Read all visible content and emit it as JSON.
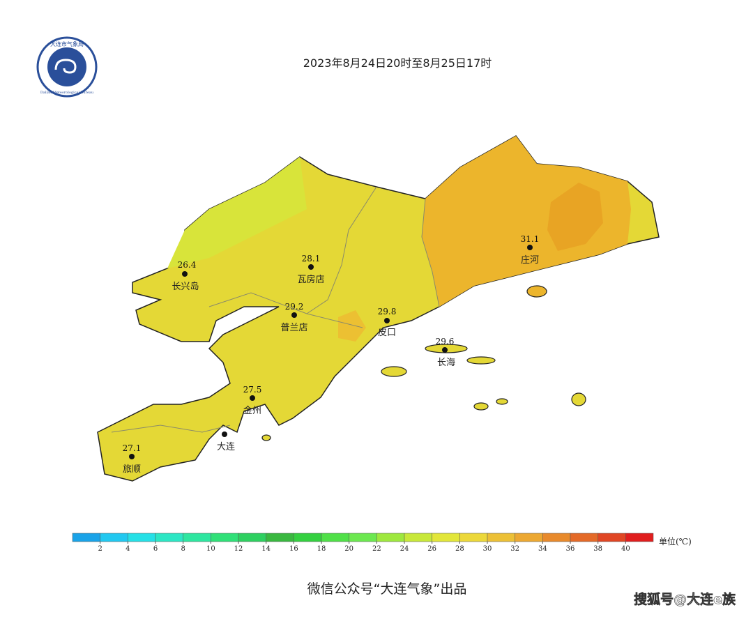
{
  "logo": {
    "name": "大连市气象局",
    "name_en": "Dalian Meteorological Bureau"
  },
  "title": "2023年8月24日20时至8月25日17时",
  "stations": [
    {
      "name": "长兴岛",
      "value": "26.4"
    },
    {
      "name": "瓦房店",
      "value": "28.1"
    },
    {
      "name": "普兰店",
      "value": "29.2"
    },
    {
      "name": "皮口",
      "value": "29.8"
    },
    {
      "name": "庄河",
      "value": "31.1"
    },
    {
      "name": "长海",
      "value": "29.6"
    },
    {
      "name": "金州",
      "value": "27.5"
    },
    {
      "name": "大连"
    },
    {
      "name": "旅顺",
      "value": "27.1"
    }
  ],
  "legend": {
    "min": 0,
    "max": 42,
    "ticks": [
      2,
      4,
      6,
      8,
      10,
      12,
      14,
      16,
      18,
      20,
      22,
      24,
      26,
      28,
      30,
      32,
      34,
      36,
      38,
      40
    ],
    "colors": [
      "#1aa3e8",
      "#22c8f0",
      "#26e0e6",
      "#2ce6c4",
      "#2ee6a0",
      "#30e078",
      "#2ed060",
      "#3ab840",
      "#34d040",
      "#50e048",
      "#6ce850",
      "#9ee83e",
      "#c8e83a",
      "#e2e63a",
      "#ecd83a",
      "#ecc036",
      "#eca832",
      "#e88a2c",
      "#e46a28",
      "#e04624",
      "#e01e1e"
    ],
    "unit": "单位(℃)"
  },
  "footer": "微信公众号“大连气象”出品",
  "watermark": "搜狐号@大连e族"
}
